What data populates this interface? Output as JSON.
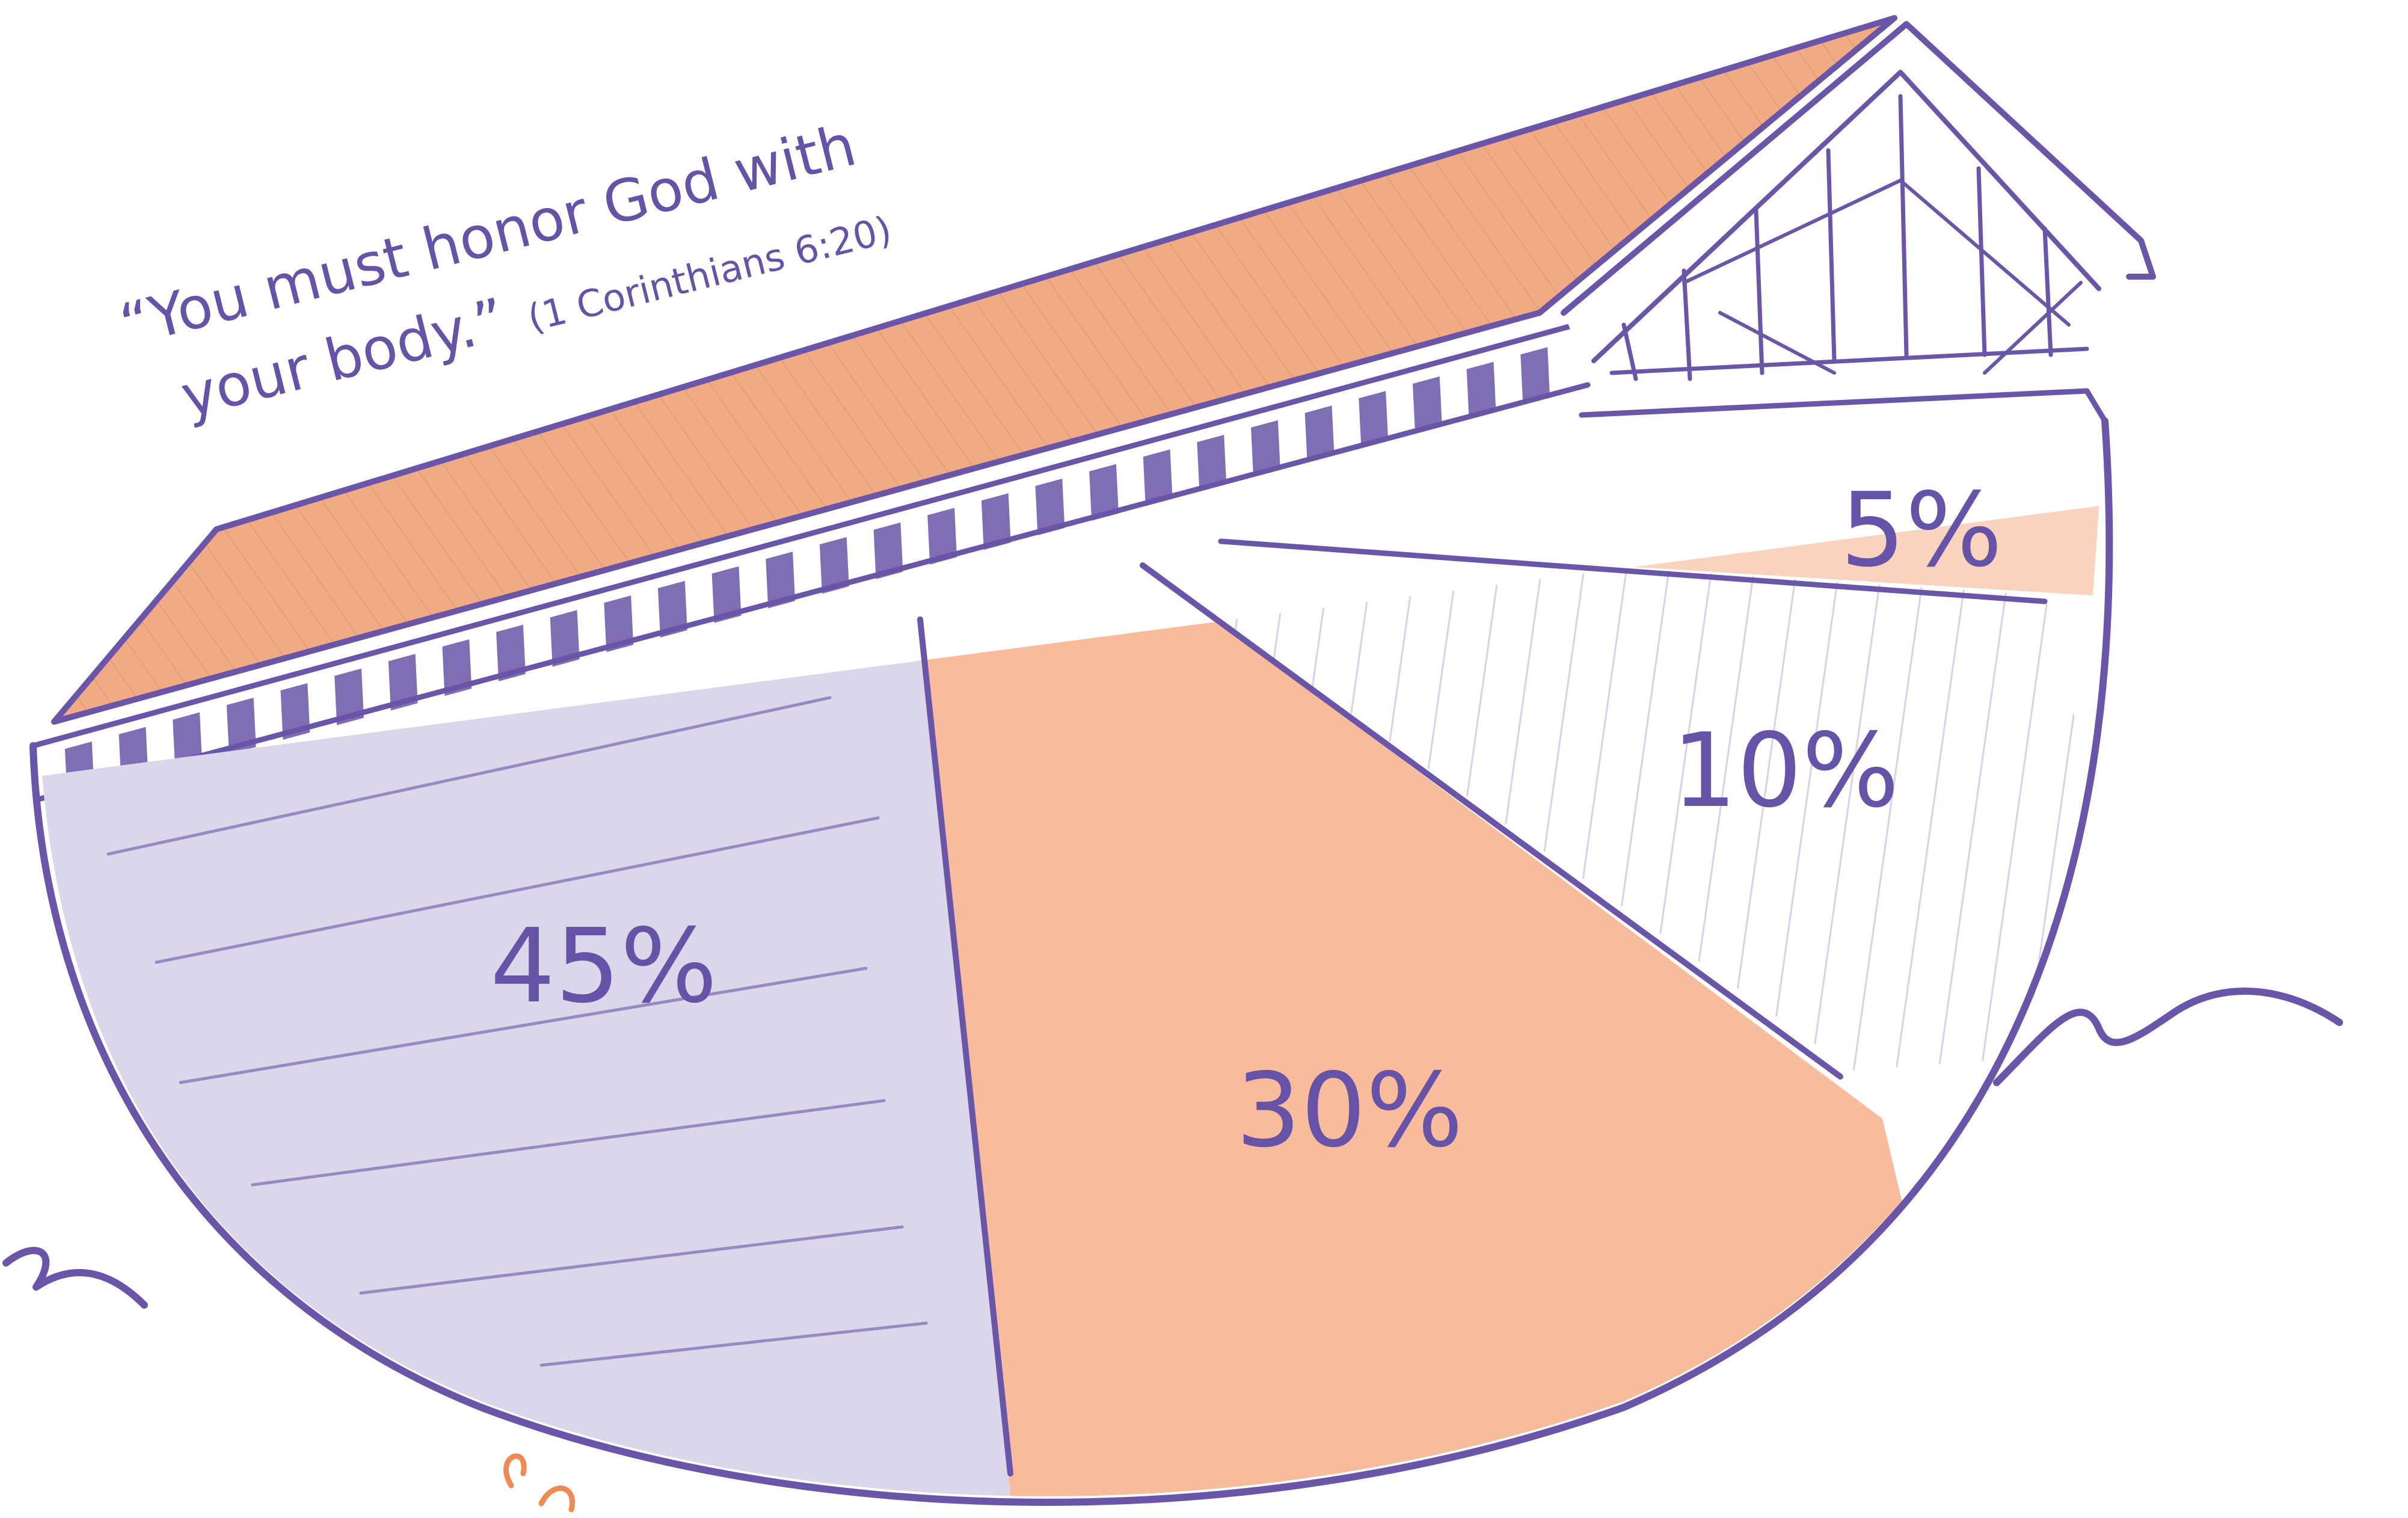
{
  "caption": {
    "line1": "“You must honor God with",
    "line2_main": "your body.”",
    "line2_ref": "(1 Corinthians 6:20)"
  },
  "colors": {
    "outline": "#6a55a8",
    "text": "#6652a6",
    "roof": "#f0aa84",
    "lavender": "#dcd6ea",
    "peach": "#f8bc9c",
    "light_peach": "#f9d3bd",
    "white": "#ffffff"
  },
  "chart_data": {
    "type": "pie",
    "slices": [
      {
        "label": "45%",
        "value": 45,
        "color": "#dcd6ea"
      },
      {
        "label": "30%",
        "value": 30,
        "color": "#f8bc9c"
      },
      {
        "label": "10%",
        "value": 10,
        "color": "#ffffff"
      },
      {
        "label": "5%",
        "value": 5,
        "color": "#f9d3bd"
      }
    ]
  }
}
